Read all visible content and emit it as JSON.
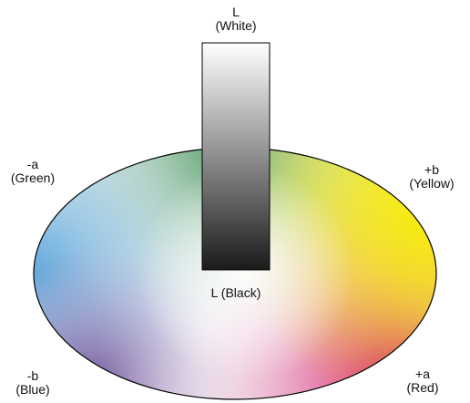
{
  "axes": {
    "l_top": {
      "symbol": "L",
      "name": "(White)"
    },
    "minus_a": {
      "symbol": "-a",
      "name": "(Green)"
    },
    "plus_b": {
      "symbol": "+b",
      "name": "(Yellow)"
    },
    "l_bottom": {
      "text": "L (Black)"
    },
    "minus_b": {
      "symbol": "-b",
      "name": "(Blue)"
    },
    "plus_a": {
      "symbol": "+a",
      "name": "(Red)"
    }
  },
  "colors": {
    "green": "#5a9e72",
    "yellow": "#f2e600",
    "blue": "#6fb2dc",
    "red": "#d4106a",
    "violet": "#7d4d93",
    "white": "#ffffff",
    "black": "#1a1a1a",
    "outline": "#000000"
  }
}
